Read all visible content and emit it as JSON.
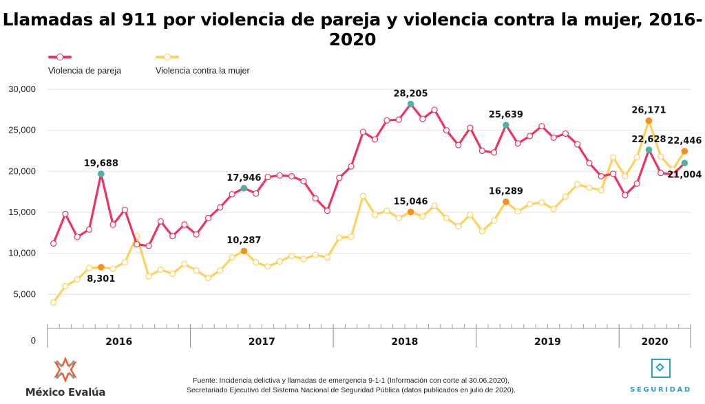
{
  "title": "Llamadas al 911 por violencia de pareja y violencia contra la mujer, 2016-2020",
  "legend": [
    {
      "label": "Violencia de pareja",
      "color": "#f0325f"
    },
    {
      "label": "Violencia contra la mujer",
      "color": "#ffd05a"
    }
  ],
  "colors": {
    "pareja": "#f0325f",
    "mujer": "#ffd05a",
    "highlight_pareja": "#4fb1a4",
    "highlight_mujer": "#f5901e",
    "grid": "#e6e6e6",
    "axis": "#999999"
  },
  "chart_data": {
    "type": "line",
    "title": "Llamadas al 911 por violencia de pareja y violencia contra la mujer, 2016-2020",
    "xlabel": "",
    "ylabel": "",
    "ylim": [
      0,
      30000
    ],
    "yticks": [
      0,
      5000,
      10000,
      15000,
      20000,
      25000,
      30000
    ],
    "ytick_labels": [
      "0",
      "5,000",
      "10,000",
      "15,000",
      "20,000",
      "25,000",
      "30,000"
    ],
    "grid": true,
    "legend_position": "top-left",
    "x_start": "2016-01",
    "x_end": "2020-06",
    "x_frequency": "monthly",
    "year_labels": [
      {
        "label": "2016",
        "months": 12
      },
      {
        "label": "2017",
        "months": 12
      },
      {
        "label": "2018",
        "months": 12
      },
      {
        "label": "2019",
        "months": 12
      },
      {
        "label": "2020",
        "months": 6
      }
    ],
    "series": [
      {
        "name": "Violencia de pareja",
        "values": [
          11200,
          14800,
          12000,
          12900,
          19688,
          13500,
          15300,
          11100,
          10900,
          13900,
          12100,
          13500,
          12300,
          14300,
          15600,
          17200,
          17946,
          17300,
          19300,
          19500,
          19400,
          18800,
          16700,
          15200,
          19200,
          20600,
          24800,
          23900,
          26200,
          26300,
          28205,
          26400,
          27500,
          25000,
          23200,
          25300,
          22500,
          22300,
          25639,
          23400,
          24300,
          25500,
          24100,
          24600,
          23300,
          21000,
          19400,
          19700,
          17100,
          18500,
          22628,
          19800,
          19600,
          21004
        ]
      },
      {
        "name": "Violencia contra la mujer",
        "values": [
          4000,
          6000,
          6800,
          8200,
          8301,
          8100,
          8900,
          12100,
          7200,
          8000,
          7500,
          8700,
          7900,
          7000,
          7900,
          9500,
          10287,
          8900,
          8400,
          9000,
          9700,
          9300,
          9800,
          9500,
          11900,
          12000,
          17000,
          14700,
          15200,
          14300,
          15046,
          14500,
          15800,
          14300,
          13300,
          14700,
          12700,
          14000,
          16289,
          15100,
          16000,
          16200,
          15400,
          16900,
          18400,
          18000,
          17700,
          21700,
          19400,
          21700,
          26171,
          21800,
          20200,
          22446
        ]
      }
    ],
    "annotations": [
      {
        "series": 0,
        "index": 4,
        "label": "19,688",
        "position": "above"
      },
      {
        "series": 0,
        "index": 16,
        "label": "17,946",
        "position": "above"
      },
      {
        "series": 0,
        "index": 30,
        "label": "28,205",
        "position": "above"
      },
      {
        "series": 0,
        "index": 38,
        "label": "25,639",
        "position": "above"
      },
      {
        "series": 0,
        "index": 50,
        "label": "22,628",
        "position": "above"
      },
      {
        "series": 0,
        "index": 53,
        "label": "21,004",
        "position": "below"
      },
      {
        "series": 1,
        "index": 4,
        "label": "8,301",
        "position": "below"
      },
      {
        "series": 1,
        "index": 16,
        "label": "10,287",
        "position": "above"
      },
      {
        "series": 1,
        "index": 30,
        "label": "15,046",
        "position": "above"
      },
      {
        "series": 1,
        "index": 38,
        "label": "16,289",
        "position": "above"
      },
      {
        "series": 1,
        "index": 50,
        "label": "26,171",
        "position": "above"
      },
      {
        "series": 1,
        "index": 53,
        "label": "22,446",
        "position": "above"
      }
    ]
  },
  "footer": {
    "source_line1": "Fuente: Incidencia delictiva y llamadas de emergencia 9-1-1 (Información con corte al 30.06.2020),",
    "source_line2": "Secretariado Ejecutivo del Sistema Nacional de Seguridad Pública (datos publicados en julio de 2020).",
    "logo_left": "México Evalúa",
    "logo_right": "SEGURIDAD"
  }
}
